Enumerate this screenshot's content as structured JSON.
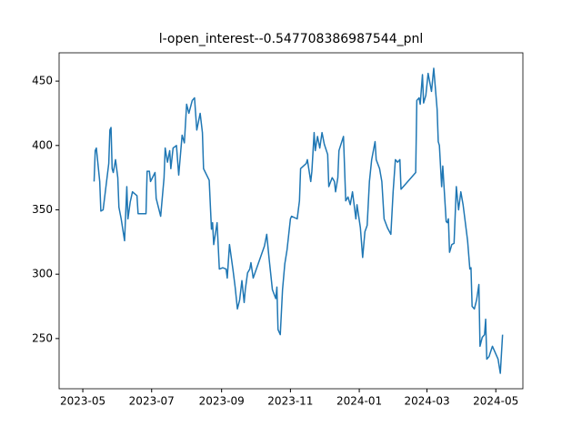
{
  "chart_data": {
    "type": "line",
    "title": "l-open_interest--0.547708386987544_pnl",
    "color": "#1f77b4",
    "x": [
      19488,
      19489,
      19490,
      19493,
      19494,
      19496,
      19501,
      19502,
      19503,
      19504,
      19505,
      19507,
      19509,
      19510,
      19512,
      19515,
      19517,
      19518,
      19520,
      19522,
      19526,
      19527,
      19534,
      19535,
      19537,
      19538,
      19542,
      19543,
      19547,
      19550,
      19551,
      19553,
      19555,
      19556,
      19558,
      19561,
      19563,
      19566,
      19568,
      19570,
      19572,
      19575,
      19577,
      19579,
      19582,
      19584,
      19585,
      19590,
      19592,
      19593,
      19594,
      19597,
      19599,
      19602,
      19605,
      19606,
      19608,
      19611,
      19613,
      19615,
      19617,
      19619,
      19621,
      19622,
      19624,
      19626,
      19627,
      19629,
      19639,
      19641,
      19643,
      19646,
      19649,
      19650,
      19651,
      19653,
      19655,
      19657,
      19659,
      19662,
      19663,
      19668,
      19670,
      19671,
      19676,
      19677,
      19680,
      19681,
      19683,
      19684,
      19686,
      19688,
      19690,
      19692,
      19695,
      19696,
      19699,
      19701,
      19702,
      19704,
      19705,
      19709,
      19711,
      19713,
      19715,
      19717,
      19718,
      19720,
      19721,
      19724,
      19726,
      19728,
      19730,
      19732,
      19734,
      19737,
      19738,
      19741,
      19743,
      19745,
      19748,
      19751,
      19753,
      19755,
      19757,
      19759,
      19760,
      19773,
      19774,
      19776,
      19777,
      19779,
      19780,
      19782,
      19784,
      19787,
      19789,
      19792,
      19793,
      19794,
      19796,
      19797,
      19800,
      19801,
      19802,
      19803,
      19805,
      19807,
      19809,
      19811,
      19813,
      19815,
      19819,
      19821,
      19822,
      19823,
      19825,
      19827,
      19829,
      19830,
      19832,
      19834,
      19835,
      19836,
      19838,
      19841,
      19846,
      19848,
      19850
    ],
    "values": [
      372,
      396,
      398,
      372,
      349,
      350,
      386,
      412,
      414,
      382,
      379,
      389,
      375,
      352,
      343,
      326,
      368,
      343,
      356,
      364,
      361,
      347,
      347,
      380,
      380,
      372,
      379,
      359,
      345,
      375,
      398,
      387,
      396,
      382,
      398,
      400,
      377,
      408,
      402,
      432,
      425,
      435,
      437,
      412,
      425,
      410,
      382,
      373,
      335,
      340,
      323,
      340,
      304,
      305,
      304,
      297,
      323,
      304,
      290,
      273,
      280,
      295,
      278,
      288,
      301,
      304,
      309,
      297,
      322,
      331,
      313,
      288,
      281,
      290,
      257,
      253,
      288,
      308,
      319,
      343,
      345,
      343,
      357,
      382,
      386,
      389,
      372,
      380,
      410,
      396,
      407,
      398,
      410,
      401,
      393,
      368,
      375,
      372,
      364,
      375,
      396,
      407,
      357,
      360,
      354,
      364,
      357,
      343,
      354,
      336,
      313,
      333,
      338,
      372,
      389,
      403,
      389,
      382,
      372,
      343,
      336,
      331,
      364,
      389,
      387,
      389,
      366,
      379,
      435,
      437,
      432,
      455,
      433,
      439,
      456,
      442,
      460,
      428,
      403,
      400,
      368,
      384,
      341,
      340,
      343,
      317,
      323,
      324,
      368,
      350,
      364,
      354,
      326,
      304,
      305,
      275,
      273,
      280,
      292,
      244,
      251,
      253,
      265,
      234,
      236,
      244,
      234,
      223,
      253
    ],
    "xlim": [
      19457,
      19868
    ],
    "ylim": [
      211,
      472
    ],
    "xticks": [
      {
        "value": 19478,
        "label": "2023-05"
      },
      {
        "value": 19539,
        "label": "2023-07"
      },
      {
        "value": 19601,
        "label": "2023-09"
      },
      {
        "value": 19662,
        "label": "2023-11"
      },
      {
        "value": 19723,
        "label": "2024-01"
      },
      {
        "value": 19783,
        "label": "2024-03"
      },
      {
        "value": 19844,
        "label": "2024-05"
      }
    ],
    "yticks": [
      250,
      300,
      350,
      400,
      450
    ]
  }
}
